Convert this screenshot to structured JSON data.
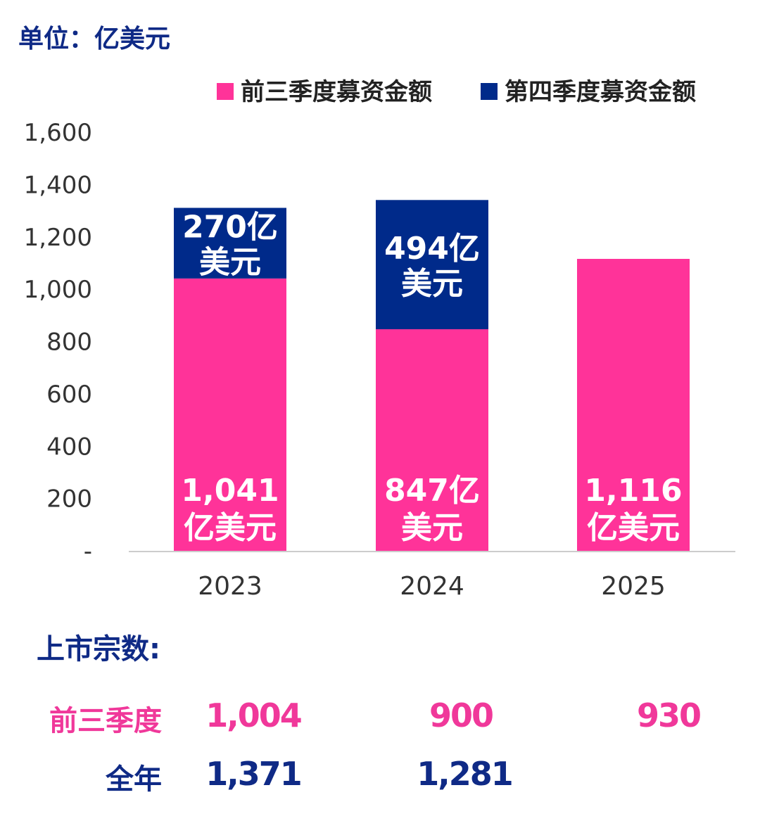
{
  "unit_label": "单位：亿美元",
  "colors": {
    "first_three_quarters": "#ff3399",
    "fourth_quarter": "#002a8a",
    "axis_text": "#333333",
    "axis_line": "#cccccc",
    "bar_label": "#ffffff"
  },
  "chart_data": {
    "type": "bar",
    "stacked": true,
    "categories": [
      "2023",
      "2024",
      "2025"
    ],
    "series": [
      {
        "name": "前三季度募资金额",
        "values": [
          1041,
          847,
          1116
        ],
        "labels": [
          [
            "1,041",
            "亿美元"
          ],
          [
            "847亿",
            "美元"
          ],
          [
            "1,116",
            "亿美元"
          ]
        ]
      },
      {
        "name": "第四季度募资金额",
        "values": [
          270,
          494,
          null
        ],
        "labels": [
          [
            "270亿",
            "美元"
          ],
          [
            "494亿",
            "美元"
          ],
          null
        ]
      }
    ],
    "ylim": [
      0,
      1600
    ],
    "yticks": [
      0,
      200,
      400,
      600,
      800,
      1000,
      1200,
      1400,
      1600
    ],
    "ytick_labels": [
      "-",
      "200",
      "400",
      "600",
      "800",
      "1,000",
      "1,200",
      "1,400",
      "1,600"
    ],
    "legend_position": "top-right",
    "title": "",
    "xlabel": "",
    "ylabel": ""
  },
  "listings": {
    "title": "上市宗数:",
    "rows": [
      {
        "label": "前三季度",
        "values": [
          "1,004",
          "900",
          "930"
        ]
      },
      {
        "label": "全年",
        "values": [
          "1,371",
          "1,281",
          ""
        ]
      }
    ]
  }
}
